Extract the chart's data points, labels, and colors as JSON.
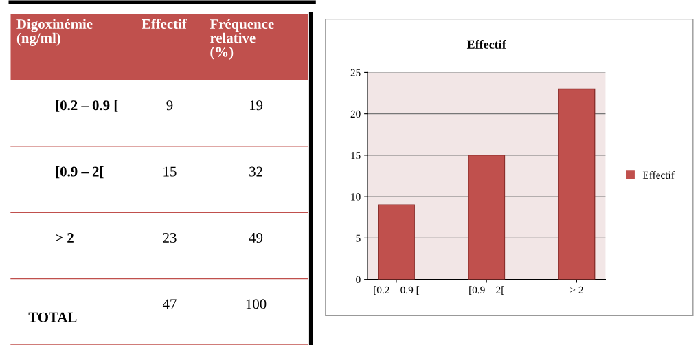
{
  "chart_data": [
    {
      "type": "other",
      "xlabel": "Digoxinémie (ng/ml)",
      "categories": [
        "[0.2 – 0.9 [",
        "[0.9 – 2[",
        "> 2",
        "TOTAL"
      ],
      "data_labels": true,
      "series": [
        {
          "name": "Effectif",
          "values": [
            9,
            15,
            23,
            47
          ]
        },
        {
          "name": "Fréquence relative (%)",
          "values": [
            19,
            32,
            49,
            100
          ]
        }
      ]
    },
    {
      "type": "bar",
      "title": "Effectif",
      "categories": [
        "[0.2 – 0.9 [",
        "[0.9 – 2[",
        "> 2"
      ],
      "series": [
        {
          "name": "Effectif",
          "color": "#c0504d",
          "values": [
            9,
            15,
            23
          ]
        }
      ],
      "ylim": [
        0,
        25
      ],
      "yticks": [
        0,
        5,
        10,
        15,
        20,
        25
      ],
      "grid": "y",
      "legend": "right"
    }
  ]
}
